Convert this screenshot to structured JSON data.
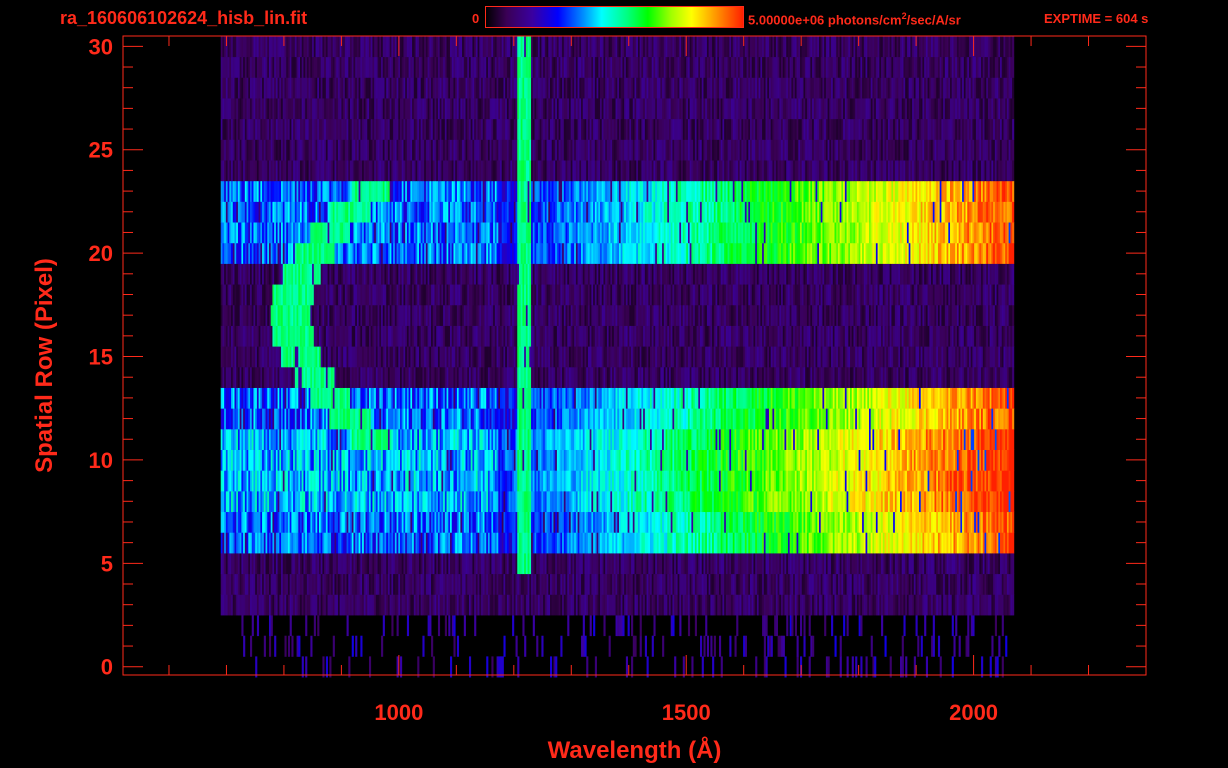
{
  "header": {
    "file_title": "ra_160606102624_hisb_lin.fit",
    "colorbar_min": "0",
    "colorbar_max_prefix": "5.00000e+06 photons/cm",
    "colorbar_max_sup": "2",
    "colorbar_max_suffix": "/sec/A/sr",
    "exptime": "EXPTIME = 604 s"
  },
  "colors": {
    "text": "#ff2a1a",
    "axis": "#ff2a1a",
    "background": "#000000"
  },
  "chart_data": {
    "type": "heatmap",
    "xlabel": "Wavelength (Å)",
    "ylabel": "Spatial Row (Pixel)",
    "xlim": [
      520,
      2300
    ],
    "ylim": [
      -0.4,
      30.5
    ],
    "x_ticks": [
      1000,
      1500,
      2000
    ],
    "y_ticks": [
      0,
      5,
      10,
      15,
      20,
      25,
      30
    ],
    "colorscale": [
      "#000000",
      "#3a0055",
      "#3a00a0",
      "#0000ff",
      "#0090ff",
      "#00ffff",
      "#00ff80",
      "#00ff00",
      "#a0ff00",
      "#ffff00",
      "#ff9000",
      "#ff2000"
    ],
    "colorbar_range": [
      0,
      5000000
    ],
    "data_x_range": [
      690,
      2070
    ],
    "data_rows": [
      0,
      30
    ],
    "features": [
      {
        "name": "lyman-alpha",
        "x": 1216
      },
      {
        "name": "arc",
        "x_min": 800,
        "x_max": 950,
        "rows": [
          11,
          23
        ]
      }
    ]
  }
}
